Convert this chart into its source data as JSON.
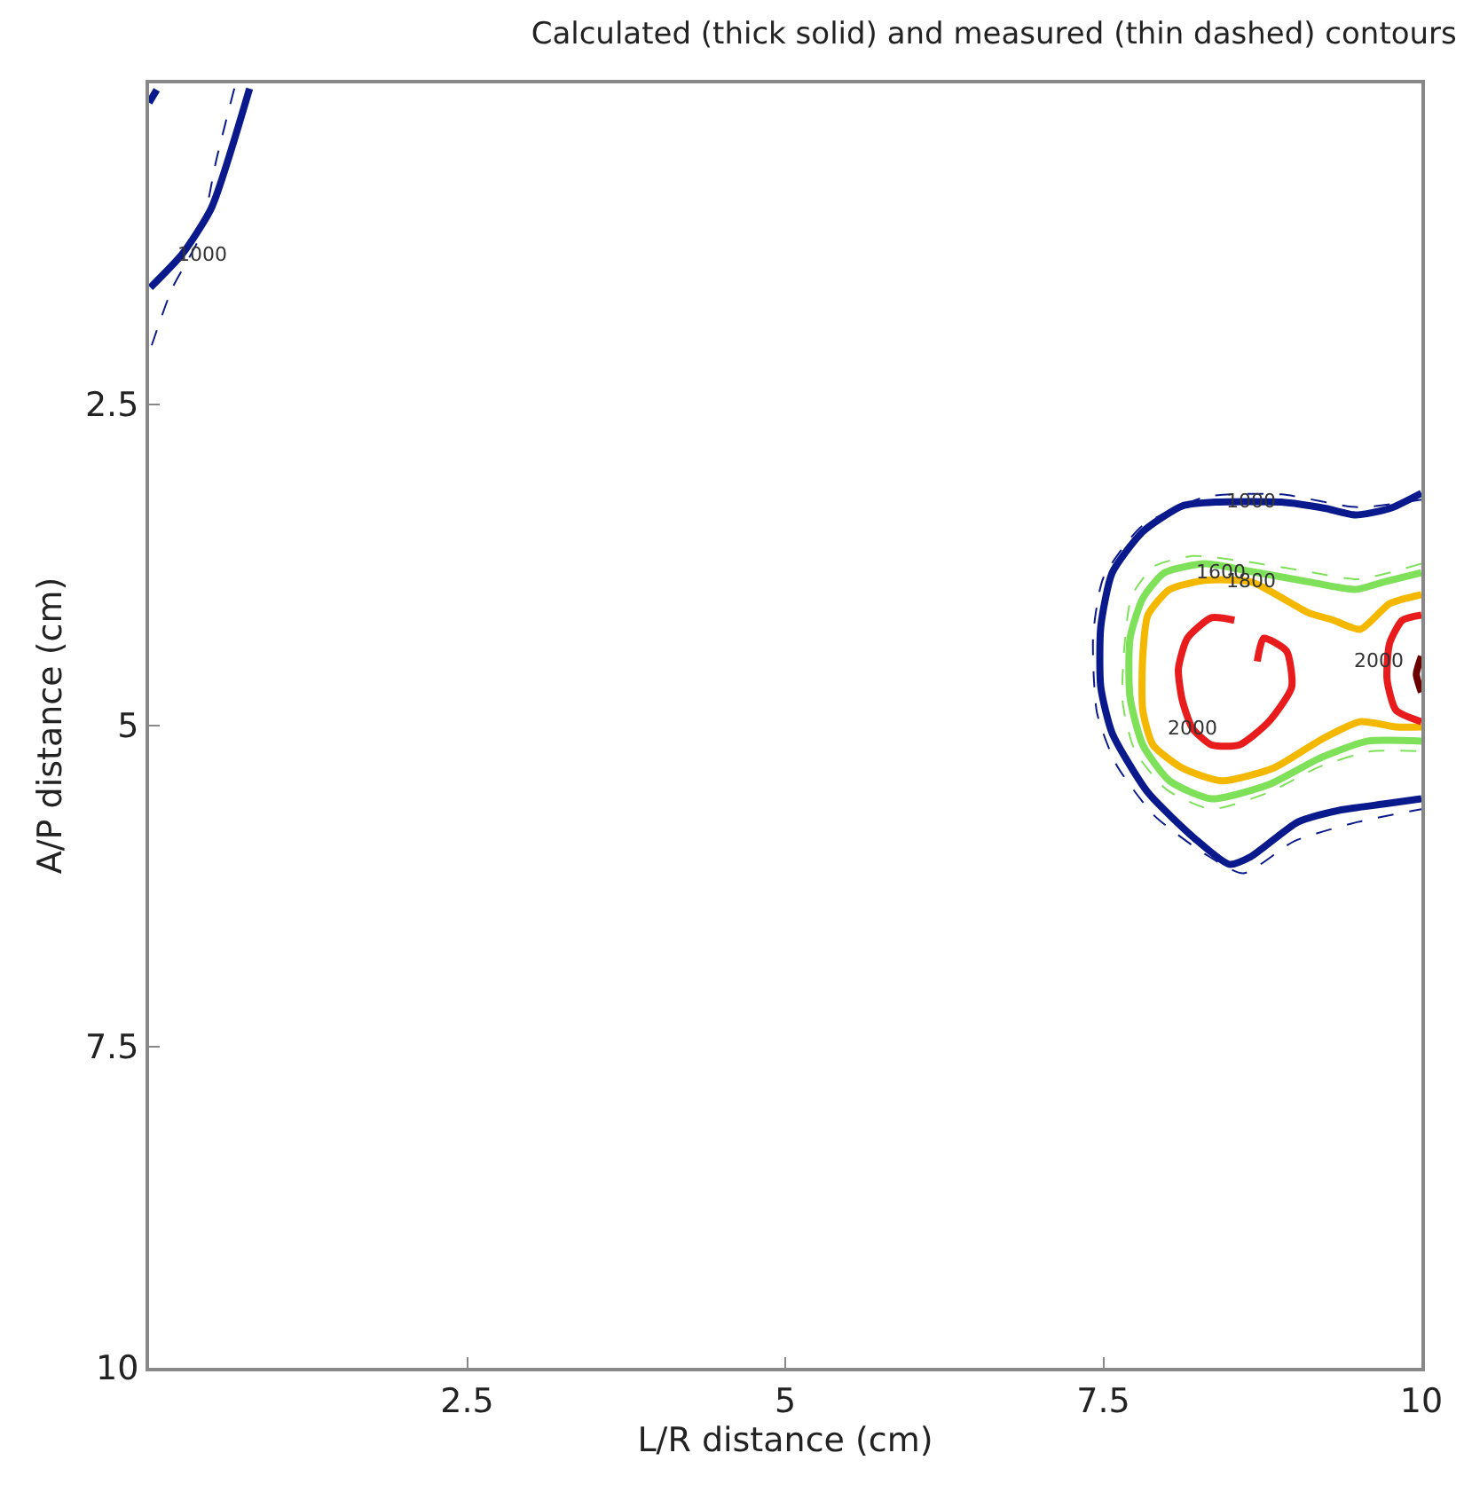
{
  "chart_data": {
    "type": "line",
    "title": "Calculated (thick solid) and measured (thin dashed) contours",
    "xlabel": "L/R distance (cm)",
    "ylabel": "A/P distance (cm)",
    "xlim": [
      0,
      10
    ],
    "xticks": [
      2.5,
      5,
      7.5,
      10
    ],
    "ylim": [
      10,
      0
    ],
    "yticks": [
      2.5,
      5,
      7.5,
      10
    ],
    "marker": "none",
    "series": [
      {
        "color": "#0a1a8c",
        "line_style": "dashed",
        "x": [
          10,
          9.5,
          8.9,
          8.3,
          7.8,
          7.5,
          7.42,
          7.45,
          7.6,
          7.9,
          8.3,
          8.6,
          9.0,
          9.5,
          10
        ],
        "values": [
          3.24,
          3.3,
          3.2,
          3.22,
          3.45,
          3.85,
          4.3,
          4.9,
          5.3,
          5.7,
          6.0,
          6.15,
          5.9,
          5.75,
          5.65
        ]
      },
      {
        "color": "#0a1a8c",
        "line_style": "dashed",
        "x": [
          0.67,
          0.53,
          0.4,
          0.18,
          0.01
        ],
        "values": [
          0.04,
          0.59,
          1.19,
          1.6,
          2.07
        ]
      },
      {
        "color": "#7fe05a",
        "line_style": "dashed",
        "x": [
          10,
          9.5,
          9.1,
          8.6,
          8.2,
          7.9,
          7.72,
          7.65,
          7.75,
          8.0,
          8.35,
          8.8,
          9.2,
          9.6,
          10
        ],
        "values": [
          3.74,
          3.86,
          3.8,
          3.72,
          3.68,
          3.76,
          4.0,
          4.8,
          5.2,
          5.5,
          5.65,
          5.52,
          5.32,
          5.2,
          5.2
        ]
      },
      {
        "color": "#0a1a8c",
        "line_style": "solid",
        "x": [
          10,
          9.75,
          9.48,
          9.25,
          8.9,
          8.39,
          8.12,
          7.81,
          7.57,
          7.48,
          7.48,
          7.57,
          7.85,
          8.22,
          8.49,
          8.66,
          9.03,
          9.35,
          9.71,
          10
        ],
        "values": [
          3.19,
          3.31,
          3.36,
          3.31,
          3.26,
          3.26,
          3.29,
          3.49,
          3.81,
          4.23,
          4.7,
          5.06,
          5.52,
          5.88,
          6.08,
          6.02,
          5.75,
          5.66,
          5.61,
          5.57
        ]
      },
      {
        "color": "#0a1a8c",
        "line_style": "solid",
        "x": [
          0.79,
          0.49,
          0.26,
          0.01
        ],
        "values": [
          0.04,
          0.97,
          1.33,
          1.59
        ]
      },
      {
        "color": "#0a1a8c",
        "line_style": "solid",
        "x": [
          0.0,
          0.06
        ],
        "values": [
          0.15,
          0.05
        ]
      },
      {
        "color": "#7fe05a",
        "line_style": "solid",
        "x": [
          10,
          9.71,
          9.48,
          9.11,
          8.66,
          8.3,
          7.98,
          7.81,
          7.71,
          7.71,
          7.81,
          8.02,
          8.35,
          8.8,
          9.21,
          9.58,
          10
        ],
        "values": [
          3.81,
          3.88,
          3.94,
          3.88,
          3.8,
          3.74,
          3.81,
          4.01,
          4.32,
          4.78,
          5.15,
          5.43,
          5.57,
          5.46,
          5.25,
          5.12,
          5.12
        ]
      },
      {
        "color": "#f5b800",
        "line_style": "solid",
        "x": [
          10,
          9.75,
          9.52,
          9.31,
          9.11,
          8.66,
          8.3,
          8.02,
          7.85,
          7.81,
          7.81,
          7.89,
          8.12,
          8.43,
          8.84,
          9.21,
          9.52,
          9.8,
          10
        ],
        "values": [
          3.98,
          4.05,
          4.25,
          4.18,
          4.12,
          3.88,
          3.87,
          3.94,
          4.14,
          4.46,
          4.88,
          5.15,
          5.33,
          5.43,
          5.33,
          5.11,
          4.97,
          5.01,
          5.01
        ]
      },
      {
        "color": "#e81c1c",
        "line_style": "solid",
        "x": [
          8.53,
          8.35,
          8.16,
          8.09,
          8.12,
          8.2,
          8.35,
          8.57,
          8.8,
          8.98,
          8.94,
          8.76,
          8.71
        ],
        "values": [
          4.18,
          4.16,
          4.32,
          4.56,
          4.8,
          5.02,
          5.15,
          5.15,
          4.97,
          4.7,
          4.42,
          4.32,
          4.5
        ]
      },
      {
        "color": "#e81c1c",
        "line_style": "solid",
        "x": [
          10,
          9.85,
          9.75,
          9.73,
          9.8,
          10
        ],
        "values": [
          4.14,
          4.18,
          4.36,
          4.64,
          4.88,
          4.97
        ]
      },
      {
        "color": "#6b0000",
        "line_style": "solid",
        "x": [
          10,
          9.96,
          10
        ],
        "values": [
          4.46,
          4.6,
          4.74
        ]
      }
    ],
    "annotations": [
      {
        "text": "1000",
        "x": 8.66,
        "y": 3.25
      },
      {
        "text": "1600",
        "x": 8.43,
        "y": 3.8
      },
      {
        "text": "1800",
        "x": 8.66,
        "y": 3.88
      },
      {
        "text": "2000",
        "x": 8.2,
        "y": 5.02
      },
      {
        "text": "2000",
        "x": 9.66,
        "y": 4.5
      },
      {
        "text": "1000",
        "x": 0.42,
        "y": 1.33
      }
    ]
  }
}
